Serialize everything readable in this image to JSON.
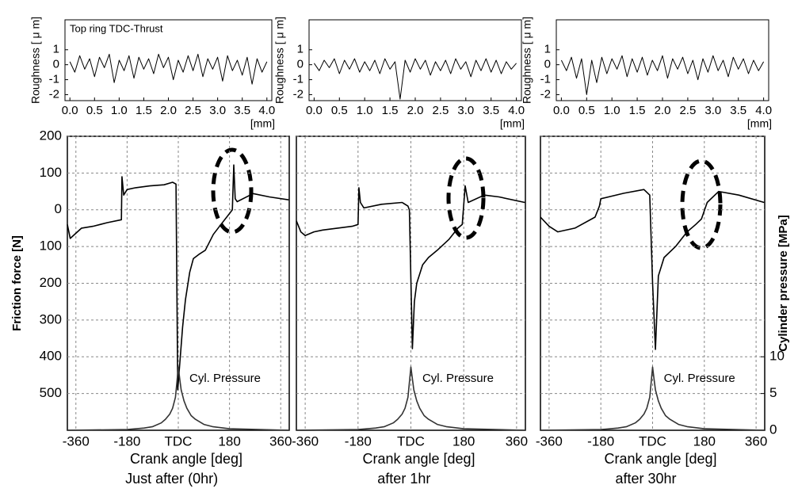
{
  "chart_data": [
    {
      "type": "line",
      "title": "Top ring TDC-Thrust",
      "ylabel": "Roughness [ μ m]",
      "xlabel": "[mm]",
      "xlim": [
        -0.1,
        4.1
      ],
      "ylim": [
        -2.4,
        3
      ],
      "xticks": [
        {
          "value": 0,
          "label": "0.0"
        },
        0.5,
        {
          "value": 1,
          "label": "1.0"
        },
        1.5,
        {
          "value": 2,
          "label": "2.0"
        },
        2.5,
        {
          "value": 3,
          "label": "3.0"
        },
        3.5,
        {
          "value": 4,
          "label": "4.0"
        }
      ],
      "yticks": [
        1,
        0,
        -1,
        -2
      ],
      "grid": false,
      "series": [
        {
          "color": "#000000",
          "x": [
            0,
            0.1,
            0.2,
            0.3,
            0.4,
            0.5,
            0.6,
            0.7,
            0.8,
            0.9,
            1,
            1.1,
            1.2,
            1.3,
            1.4,
            1.5,
            1.6,
            1.7,
            1.8,
            1.9,
            2,
            2.1,
            2.2,
            2.3,
            2.4,
            2.5,
            2.6,
            2.7,
            2.8,
            2.9,
            3,
            3.1,
            3.2,
            3.3,
            3.4,
            3.5,
            3.6,
            3.7,
            3.8,
            3.9,
            4
          ],
          "values": [
            0.2,
            -0.5,
            0.6,
            -0.3,
            0.4,
            -0.8,
            0.5,
            -0.2,
            0.7,
            -1.2,
            0.3,
            -0.4,
            0.6,
            -0.9,
            0.5,
            -0.3,
            0.4,
            -0.6,
            0.7,
            -0.2,
            0.5,
            -1.0,
            0.3,
            -0.5,
            0.6,
            -0.4,
            0.7,
            -0.8,
            0.4,
            -0.3,
            0.5,
            -1.1,
            0.6,
            -0.4,
            0.3,
            -0.7,
            0.5,
            -1.3,
            0.4,
            -0.5,
            0.2
          ]
        }
      ]
    },
    {
      "type": "line",
      "ylabel": "Roughness [ μ m]",
      "xlabel": "[mm]",
      "xlim": [
        -0.1,
        4.1
      ],
      "ylim": [
        -2.4,
        3
      ],
      "xticks": [
        {
          "value": 0,
          "label": "0.0"
        },
        0.5,
        {
          "value": 1,
          "label": "1.0"
        },
        1.5,
        {
          "value": 2,
          "label": "2.0"
        },
        2.5,
        {
          "value": 3,
          "label": "3.0"
        },
        3.5,
        {
          "value": 4,
          "label": "4.0"
        }
      ],
      "yticks": [
        1,
        0,
        -1,
        -2
      ],
      "grid": false,
      "series": [
        {
          "color": "#000000",
          "x": [
            0,
            0.1,
            0.2,
            0.3,
            0.4,
            0.5,
            0.6,
            0.7,
            0.8,
            0.9,
            1,
            1.1,
            1.2,
            1.3,
            1.4,
            1.5,
            1.6,
            1.7,
            1.8,
            1.9,
            2,
            2.1,
            2.2,
            2.3,
            2.4,
            2.5,
            2.6,
            2.7,
            2.8,
            2.9,
            3,
            3.1,
            3.2,
            3.3,
            3.4,
            3.5,
            3.6,
            3.7,
            3.8,
            3.9,
            4
          ],
          "values": [
            0.1,
            -0.4,
            0.3,
            -0.2,
            0.4,
            -0.6,
            0.3,
            -0.3,
            0.4,
            -0.5,
            0.2,
            -0.4,
            0.3,
            -0.6,
            0.4,
            -0.3,
            0.2,
            -2.3,
            0.3,
            -0.5,
            0.4,
            -0.3,
            0.3,
            -0.7,
            0.2,
            -0.4,
            0.3,
            -0.6,
            0.4,
            -0.3,
            0.2,
            -0.8,
            0.3,
            -0.4,
            0.4,
            -0.5,
            0.3,
            -0.6,
            0.2,
            -0.3,
            0.1
          ]
        }
      ]
    },
    {
      "type": "line",
      "ylabel": "Roughness [ μ m]",
      "xlabel": "[mm]",
      "xlim": [
        -0.1,
        4.1
      ],
      "ylim": [
        -2.4,
        3
      ],
      "xticks": [
        {
          "value": 0,
          "label": "0.0"
        },
        0.5,
        {
          "value": 1,
          "label": "1.0"
        },
        1.5,
        {
          "value": 2,
          "label": "2.0"
        },
        2.5,
        {
          "value": 3,
          "label": "3.0"
        },
        3.5,
        {
          "value": 4,
          "label": "4.0"
        }
      ],
      "yticks": [
        1,
        0,
        -1,
        -2
      ],
      "grid": false,
      "series": [
        {
          "color": "#000000",
          "x": [
            0,
            0.1,
            0.2,
            0.3,
            0.4,
            0.5,
            0.6,
            0.7,
            0.8,
            0.9,
            1,
            1.1,
            1.2,
            1.3,
            1.4,
            1.5,
            1.6,
            1.7,
            1.8,
            1.9,
            2,
            2.1,
            2.2,
            2.3,
            2.4,
            2.5,
            2.6,
            2.7,
            2.8,
            2.9,
            3,
            3.1,
            3.2,
            3.3,
            3.4,
            3.5,
            3.6,
            3.7,
            3.8,
            3.9,
            4
          ],
          "values": [
            0.3,
            -0.4,
            0.5,
            -0.9,
            0.4,
            -2.0,
            0.3,
            -1.2,
            0.5,
            -0.6,
            0.4,
            -0.3,
            0.6,
            -0.8,
            0.4,
            -0.5,
            0.5,
            -0.7,
            0.3,
            -0.4,
            0.6,
            -0.9,
            0.4,
            -0.3,
            0.5,
            -0.6,
            0.3,
            -1.0,
            0.4,
            -0.5,
            0.6,
            -0.4,
            0.3,
            -0.8,
            0.5,
            -0.3,
            0.4,
            -0.6,
            0.3,
            -0.4,
            0.2
          ]
        }
      ]
    },
    {
      "type": "line",
      "ylabel": "Friction force [N]",
      "xlabel": "Crank angle [deg]",
      "caption": "Just after (0hr)",
      "xlim": [
        -390,
        390
      ],
      "ylim": [
        -600,
        200
      ],
      "y2lim": [
        0,
        40
      ],
      "xticks": [
        -360,
        -180,
        {
          "value": 0,
          "label": "TDC"
        },
        180,
        360
      ],
      "yticks": [
        200,
        100,
        0,
        {
          "value": -100,
          "label": "100"
        },
        {
          "value": -200,
          "label": "200"
        },
        {
          "value": -300,
          "label": "300"
        },
        {
          "value": -400,
          "label": "400"
        },
        {
          "value": -500,
          "label": "500"
        }
      ],
      "grid": true,
      "series": [
        {
          "color": "#000000",
          "x": [
            -390,
            -380,
            -340,
            -300,
            -250,
            -200,
            -198,
            -192,
            -180,
            -150,
            -100,
            -50,
            -20,
            -8,
            -2,
            5,
            15,
            25,
            40,
            53,
            75,
            95,
            123,
            150,
            179,
            190,
            195,
            200,
            207,
            263,
            320,
            388
          ],
          "values": [
            -40,
            -78,
            -50,
            -45,
            -35,
            -27,
            90,
            40,
            55,
            60,
            65,
            68,
            75,
            70,
            -490,
            -420,
            -320,
            -245,
            -170,
            -133,
            -120,
            -110,
            -67,
            -40,
            -11,
            0,
            122,
            30,
            22,
            44,
            35,
            27
          ]
        },
        {
          "name": "Cyl. Pressure",
          "color": "#333333",
          "axis": "y2",
          "x": [
            -390,
            -180,
            -120,
            -90,
            -60,
            -45,
            -30,
            -20,
            -10,
            -5,
            0,
            5,
            10,
            20,
            30,
            45,
            60,
            90,
            120,
            180,
            390
          ],
          "values": [
            0,
            0.1,
            0.3,
            0.5,
            1,
            1.5,
            2.2,
            3,
            4.5,
            6.5,
            8.6,
            7,
            5.5,
            4,
            3,
            2,
            1.5,
            0.8,
            0.5,
            0.2,
            0
          ]
        }
      ]
    },
    {
      "type": "line",
      "xlabel": "Crank angle [deg]",
      "caption": "after 1hr",
      "xlim": [
        -390,
        390
      ],
      "ylim": [
        -600,
        200
      ],
      "y2lim": [
        0,
        40
      ],
      "xticks": [
        -360,
        -180,
        {
          "value": 0,
          "label": "TDC"
        },
        180,
        360
      ],
      "yticks": [
        200,
        100,
        0,
        -100,
        -200,
        -300,
        -400,
        -500
      ],
      "grid": true,
      "series": [
        {
          "color": "#000000",
          "x": [
            -390,
            -375,
            -360,
            -330,
            -300,
            -250,
            -200,
            -180,
            -177,
            -172,
            -160,
            -100,
            -30,
            -10,
            -5,
            5,
            12,
            20,
            40,
            60,
            90,
            130,
            160,
            175,
            185,
            195,
            250,
            300,
            388
          ],
          "values": [
            -30,
            -60,
            -70,
            -60,
            -55,
            -50,
            -45,
            -40,
            60,
            20,
            5,
            15,
            20,
            10,
            0,
            -378,
            -250,
            -200,
            -150,
            -130,
            -110,
            -80,
            -50,
            -40,
            65,
            20,
            40,
            35,
            20
          ]
        },
        {
          "name": "Cyl. Pressure",
          "color": "#333333",
          "axis": "y2",
          "x": [
            -390,
            -180,
            -120,
            -90,
            -60,
            -45,
            -30,
            -20,
            -10,
            -5,
            0,
            5,
            10,
            20,
            30,
            45,
            60,
            90,
            120,
            180,
            390
          ],
          "values": [
            0,
            0.1,
            0.3,
            0.5,
            1,
            1.5,
            2.2,
            3,
            4.5,
            6.5,
            8.6,
            7,
            5.5,
            4,
            3,
            2,
            1.5,
            0.8,
            0.5,
            0.2,
            0
          ]
        }
      ]
    },
    {
      "type": "line",
      "xlabel": "Crank angle [deg]",
      "caption": "after 30hr",
      "y2label": "Cylinder pressure [MPa]",
      "xlim": [
        -390,
        390
      ],
      "ylim": [
        -600,
        200
      ],
      "y2lim": [
        0,
        40
      ],
      "xticks": [
        -360,
        -180,
        {
          "value": 0,
          "label": "TDC"
        },
        180,
        360
      ],
      "yticks": [
        200,
        100,
        0,
        -100,
        -200,
        -300,
        -400,
        -500
      ],
      "y2ticks": [
        10,
        5,
        0
      ],
      "grid": true,
      "series": [
        {
          "color": "#000000",
          "x": [
            -390,
            -360,
            -330,
            -270,
            -200,
            -185,
            -180,
            -100,
            -30,
            -10,
            0,
            10,
            20,
            40,
            80,
            120,
            150,
            170,
            190,
            230,
            300,
            388
          ],
          "values": [
            -20,
            -45,
            -60,
            -50,
            -20,
            10,
            30,
            45,
            55,
            40,
            -200,
            -380,
            -180,
            -130,
            -100,
            -60,
            -40,
            -25,
            20,
            50,
            40,
            20
          ]
        },
        {
          "name": "Cyl. Pressure",
          "color": "#333333",
          "axis": "y2",
          "x": [
            -390,
            -180,
            -120,
            -90,
            -60,
            -45,
            -30,
            -20,
            -10,
            -5,
            0,
            5,
            10,
            20,
            30,
            45,
            60,
            90,
            120,
            180,
            390
          ],
          "values": [
            0,
            0.1,
            0.3,
            0.5,
            1,
            1.5,
            2.2,
            3,
            4.5,
            6.5,
            8.6,
            7,
            5.5,
            4,
            3,
            2,
            1.5,
            0.8,
            0.5,
            0.2,
            0
          ]
        }
      ]
    }
  ]
}
